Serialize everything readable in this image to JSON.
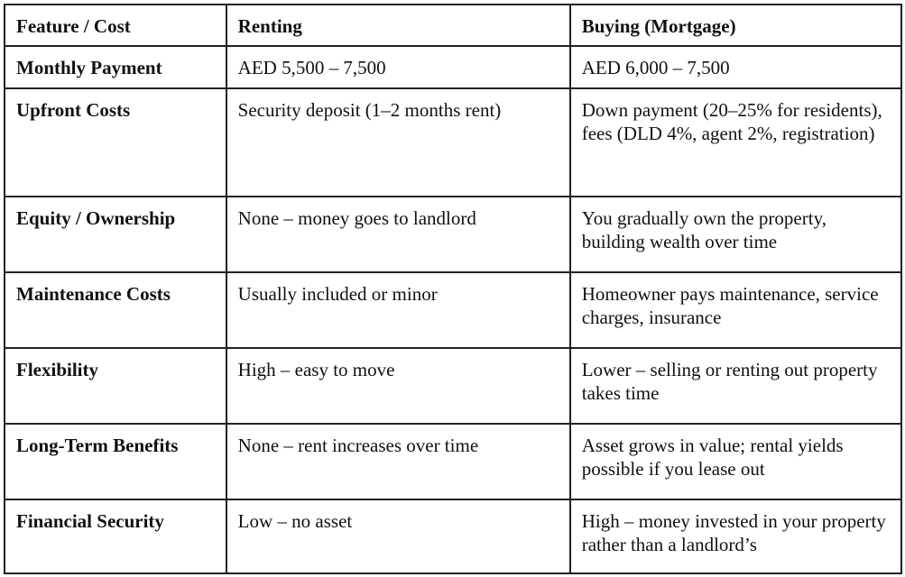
{
  "table": {
    "headers": [
      "Feature / Cost",
      "Renting",
      "Buying (Mortgage)"
    ],
    "rows": [
      [
        "Monthly Payment",
        "AED 5,500 – 7,500",
        "AED 6,000 – 7,500"
      ],
      [
        "Upfront Costs",
        "Security deposit (1–2 months rent)",
        "Down payment (20–25% for residents), fees (DLD 4%, agent 2%, registration)"
      ],
      [
        "Equity / Ownership",
        "None – money goes to landlord",
        "You gradually own the property, building wealth over time"
      ],
      [
        "Maintenance Costs",
        "Usually included or minor",
        "Homeowner pays maintenance, service charges, insurance"
      ],
      [
        "Flexibility",
        "High – easy to move",
        "Lower – selling or renting out property takes time"
      ],
      [
        "Long-Term Benefits",
        "None – rent increases over time",
        "Asset grows in value; rental yields possible if you lease out"
      ],
      [
        "Financial Security",
        "Low – no asset",
        "High – money invested in your property rather than a landlord’s"
      ]
    ]
  }
}
